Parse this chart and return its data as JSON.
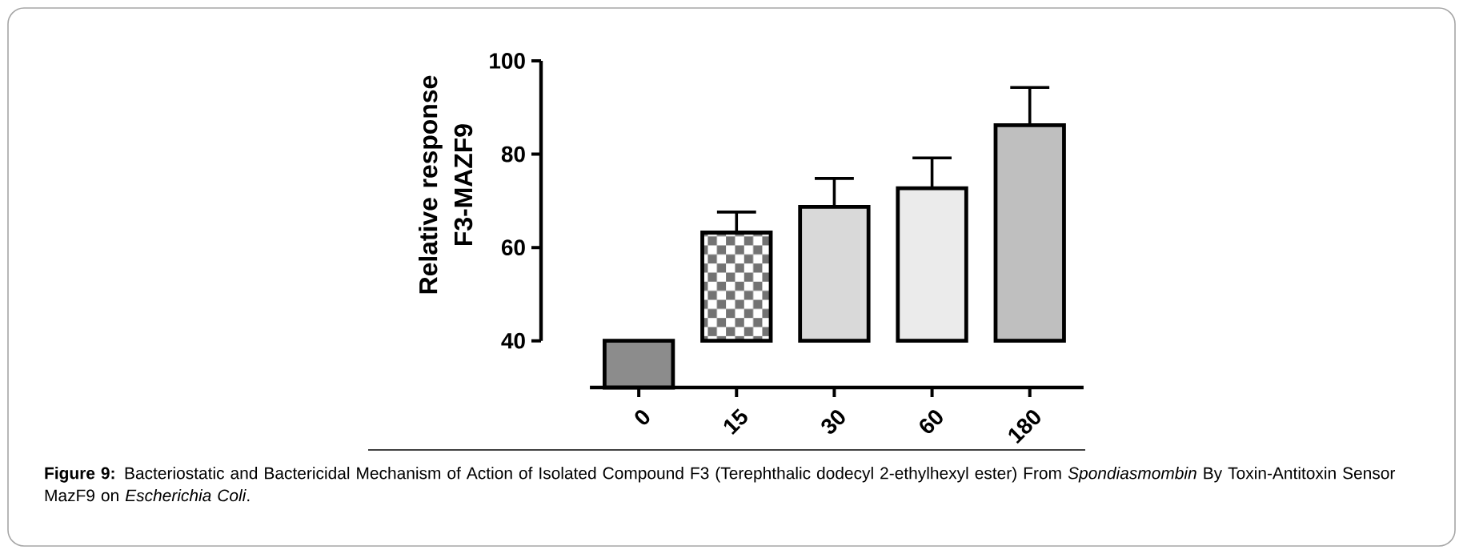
{
  "chart_data": {
    "type": "bar",
    "categories": [
      "0",
      "15",
      "30",
      "60",
      "180"
    ],
    "base": [
      30,
      40,
      40,
      40,
      40
    ],
    "values": [
      10,
      23.2,
      28.7,
      32.7,
      46.2
    ],
    "errors": [
      null,
      [
        63.2,
        67.6
      ],
      [
        68.7,
        74.8
      ],
      [
        72.7,
        79.2
      ],
      [
        86.2,
        94.3
      ]
    ],
    "color": "#000000",
    "ylabel": "Relative response F3-MAZF9",
    "ylim": [
      30,
      100
    ],
    "yticks": [
      40,
      60,
      80,
      100
    ],
    "annotations": [
      "**Figure 9:** Bacteriostatic and Bactericidal Mechanism of Action of Isolated Compound F3 (Terephthalic dodecyl 2-ethylhexyl ester) From *Spondiasmombin* By Toxin-Antitoxin Sensor MazF9 on *Escherichia Coli*."
    ]
  }
}
